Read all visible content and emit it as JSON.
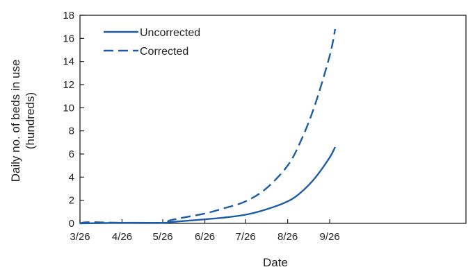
{
  "chart_data": {
    "type": "line",
    "title": "",
    "xlabel": "Date",
    "ylabel_lines": [
      "Daily no. of beds in use",
      "(hundreds)"
    ],
    "x_tick_labels": [
      "3/26",
      "4/26",
      "5/26",
      "6/26",
      "7/26",
      "8/26",
      "9/26"
    ],
    "y_tick_labels": [
      "0",
      "2",
      "4",
      "6",
      "8",
      "10",
      "12",
      "14",
      "16",
      "18"
    ],
    "ylim": [
      0,
      18
    ],
    "grid": false,
    "legend_position": "top-left",
    "series": [
      {
        "name": "Uncorrected",
        "line_style": "solid",
        "color": "#1a5ca8",
        "x": [
          "3/26",
          "4/26",
          "5/26",
          "5/31",
          "6/10",
          "6/26",
          "7/10",
          "7/26",
          "8/10",
          "8/26",
          "9/5",
          "9/15",
          "9/26",
          "9/30"
        ],
        "y": [
          0.0,
          0.05,
          0.05,
          0.1,
          0.2,
          0.35,
          0.5,
          0.75,
          1.2,
          1.9,
          2.7,
          3.9,
          5.7,
          6.6
        ]
      },
      {
        "name": "Corrected",
        "line_style": "dashed",
        "color": "#1a5ca8",
        "x": [
          "3/26",
          "4/1",
          "4/26",
          "5/26",
          "5/31",
          "6/10",
          "6/26",
          "7/10",
          "7/26",
          "8/10",
          "8/26",
          "9/5",
          "9/15",
          "9/26",
          "9/30"
        ],
        "y": [
          0.0,
          0.1,
          0.05,
          0.05,
          0.25,
          0.5,
          0.85,
          1.3,
          1.9,
          3.0,
          5.0,
          7.2,
          10.2,
          14.5,
          16.8
        ]
      }
    ]
  }
}
